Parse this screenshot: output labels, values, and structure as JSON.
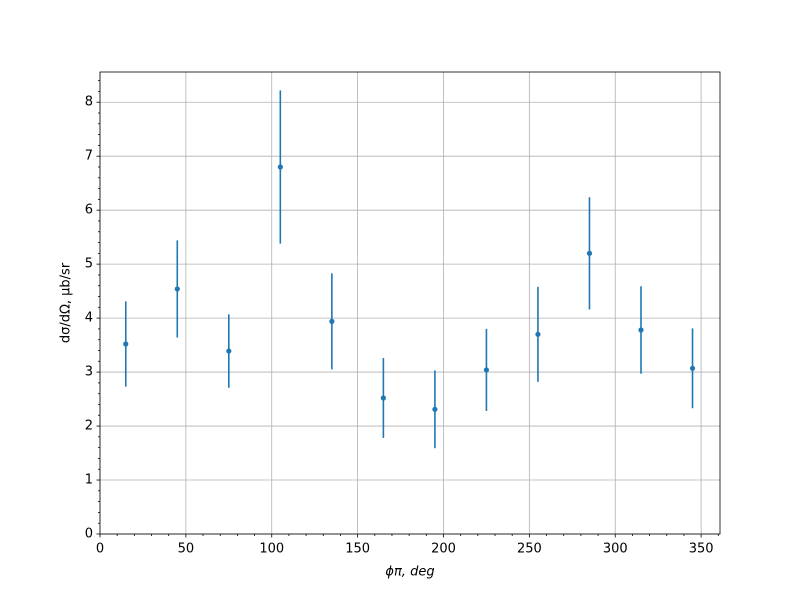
{
  "chart_data": {
    "type": "errorbar",
    "xlabel": "ϕπ, deg",
    "ylabel": "dσ/dΩ, μb/sr",
    "x": [
      15,
      45,
      75,
      105,
      135,
      165,
      195,
      225,
      255,
      285,
      315,
      345
    ],
    "values": [
      3.52,
      4.54,
      3.39,
      6.8,
      3.94,
      2.52,
      2.31,
      3.04,
      3.7,
      5.2,
      3.78,
      3.07
    ],
    "errors": [
      0.79,
      0.9,
      0.68,
      1.42,
      0.89,
      0.74,
      0.72,
      0.76,
      0.88,
      1.04,
      0.81,
      0.74
    ],
    "color": "#1f77b4",
    "xlim": [
      0,
      361
    ],
    "ylim": [
      0,
      8.56
    ],
    "xticks": [
      0,
      50,
      100,
      150,
      200,
      250,
      300,
      350
    ],
    "yticks": [
      0,
      1,
      2,
      3,
      4,
      5,
      6,
      7,
      8
    ],
    "grid": true
  }
}
